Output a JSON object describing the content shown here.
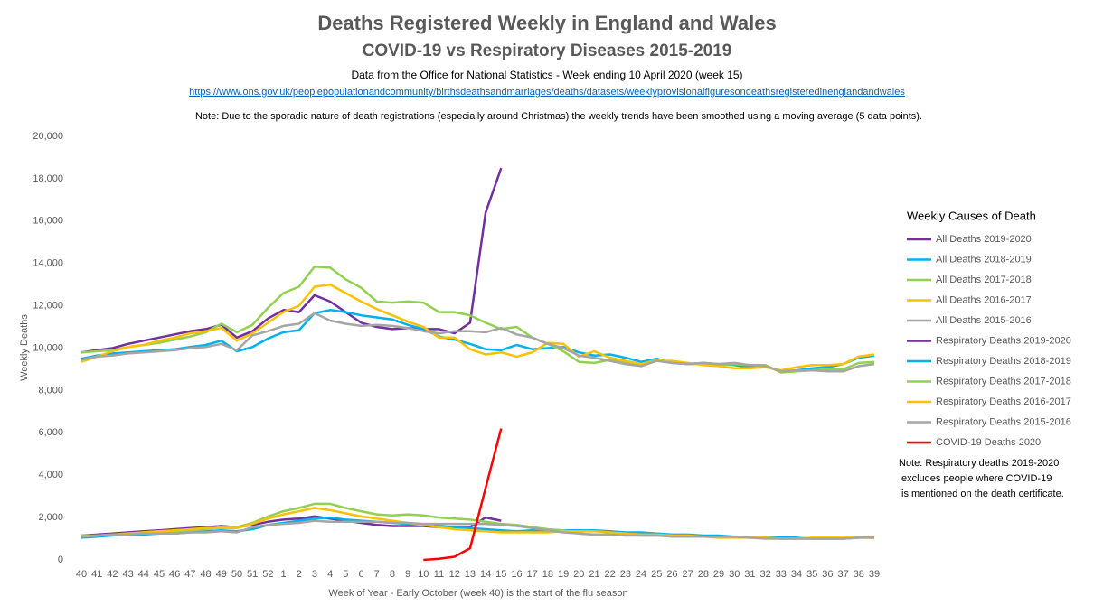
{
  "chart_data": {
    "type": "line",
    "title": "Deaths Registered Weekly in England and Wales",
    "subtitle": "COVID-19 vs Respiratory Diseases 2015-2019",
    "source": "Data from the Office for National Statistics - Week ending 10 April 2020  (week 15)",
    "url": "https://www.ons.gov.uk/peoplepopulationandcommunity/birthsdeathsandmarriages/deaths/datasets/weeklyprovisionalfiguresondeathsregisteredinenglandandwales",
    "note": "Note:  Due to the sporadic nature of death registrations (especially around Christmas) the weekly trends have been smoothed using a moving average (5 data points).",
    "legend_title": "Weekly Causes of Death",
    "legend_note": [
      "Note:  Respiratory deaths 2019-2020",
      "excludes people where  COVID-19",
      "is mentioned on the death certificate."
    ],
    "xlabel": "Week of Year - Early October (week 40) is the start of the flu season",
    "ylabel": "Weekly Deaths",
    "grid": false,
    "legend_position": "right",
    "categories": [
      "40",
      "41",
      "42",
      "43",
      "44",
      "45",
      "46",
      "47",
      "48",
      "49",
      "50",
      "51",
      "52",
      "1",
      "2",
      "3",
      "4",
      "5",
      "6",
      "7",
      "8",
      "9",
      "10",
      "11",
      "12",
      "13",
      "14",
      "15",
      "16",
      "17",
      "18",
      "19",
      "20",
      "21",
      "22",
      "23",
      "24",
      "25",
      "26",
      "27",
      "28",
      "29",
      "30",
      "31",
      "32",
      "33",
      "34",
      "35",
      "36",
      "37",
      "38",
      "39"
    ],
    "ylim": [
      0,
      20000
    ],
    "yticks": [
      0,
      {
        "value": 2000,
        "label": "2,000"
      },
      {
        "value": 4000,
        "label": "4,000"
      },
      {
        "value": 6000,
        "label": "6,000"
      },
      {
        "value": 8000,
        "label": "8,000"
      },
      {
        "value": 10000,
        "label": "10,000"
      },
      {
        "value": 12000,
        "label": "12,000"
      },
      {
        "value": 14000,
        "label": "14,000"
      },
      {
        "value": 16000,
        "label": "16,000"
      },
      {
        "value": 18000,
        "label": "18,000"
      },
      {
        "value": 20000,
        "label": "20,000"
      }
    ],
    "series": [
      {
        "name": "All Deaths 2019-2020",
        "color": "#7030a0",
        "values": [
          9800,
          9900,
          10000,
          10200,
          10350,
          10500,
          10650,
          10800,
          10900,
          11100,
          10500,
          10800,
          11400,
          11800,
          11700,
          12500,
          12200,
          11700,
          11200,
          11000,
          10900,
          10950,
          10900,
          10900,
          10700,
          11200,
          16400,
          18500,
          null,
          null,
          null,
          null,
          null,
          null,
          null,
          null,
          null,
          null,
          null,
          null,
          null,
          null,
          null,
          null,
          null,
          null,
          null,
          null,
          null,
          null,
          null,
          null
        ]
      },
      {
        "name": "All Deaths 2018-2019",
        "color": "#00b0f0",
        "values": [
          9500,
          9650,
          9750,
          9800,
          9850,
          9900,
          9950,
          10050,
          10150,
          10350,
          9850,
          10050,
          10450,
          10750,
          10850,
          11650,
          11800,
          11700,
          11550,
          11450,
          11350,
          11100,
          10900,
          10550,
          10400,
          10200,
          9950,
          9900,
          10150,
          9950,
          10000,
          10050,
          9800,
          9650,
          9700,
          9550,
          9350,
          9500,
          9300,
          9250,
          9300,
          9250,
          9200,
          9100,
          9150,
          8900,
          8950,
          9050,
          9100,
          9250,
          9550,
          9650
        ]
      },
      {
        "name": "All Deaths 2017-2018",
        "color": "#92d050",
        "values": [
          9800,
          9850,
          9900,
          10050,
          10150,
          10250,
          10400,
          10550,
          10750,
          11150,
          10750,
          11100,
          11900,
          12600,
          12900,
          13850,
          13800,
          13250,
          12850,
          12200,
          12150,
          12200,
          12150,
          11700,
          11700,
          11550,
          11200,
          10900,
          11000,
          10500,
          10200,
          9850,
          9350,
          9300,
          9450,
          9350,
          9250,
          9450,
          9300,
          9250,
          9250,
          9200,
          9250,
          9200,
          9200,
          8850,
          8900,
          8950,
          9000,
          9000,
          9300,
          9350
        ]
      },
      {
        "name": "All Deaths 2016-2017",
        "color": "#ffc000",
        "values": [
          9350,
          9600,
          9850,
          10050,
          10150,
          10350,
          10500,
          10700,
          10800,
          10950,
          10350,
          10700,
          11200,
          11700,
          12000,
          12900,
          13000,
          12600,
          12200,
          11850,
          11550,
          11250,
          11000,
          10500,
          10500,
          9950,
          9700,
          9800,
          9600,
          9800,
          10250,
          10200,
          9600,
          9850,
          9550,
          9400,
          9250,
          9400,
          9400,
          9300,
          9200,
          9150,
          9050,
          9050,
          9100,
          8950,
          9100,
          9200,
          9200,
          9250,
          9600,
          9700
        ]
      },
      {
        "name": "All Deaths 2015-2016",
        "color": "#a5a5a5",
        "values": [
          9450,
          9600,
          9650,
          9750,
          9800,
          9850,
          9900,
          10000,
          10050,
          10200,
          9900,
          10600,
          10800,
          11050,
          11150,
          11650,
          11300,
          11150,
          11050,
          11100,
          11050,
          10950,
          10800,
          10700,
          10800,
          10800,
          10750,
          10950,
          10650,
          10500,
          10200,
          10000,
          9650,
          9550,
          9400,
          9250,
          9150,
          9400,
          9300,
          9250,
          9300,
          9250,
          9300,
          9200,
          9150,
          8900,
          8950,
          8950,
          8900,
          8900,
          9150,
          9250
        ]
      },
      {
        "name": "Respiratory Deaths 2019-2020",
        "color": "#7030a0",
        "values": [
          1150,
          1200,
          1250,
          1300,
          1350,
          1400,
          1450,
          1500,
          1550,
          1600,
          1550,
          1650,
          1800,
          1900,
          1950,
          2050,
          1950,
          1850,
          1750,
          1650,
          1600,
          1600,
          1600,
          1550,
          1550,
          1550,
          2000,
          1850,
          null,
          null,
          null,
          null,
          null,
          null,
          null,
          null,
          null,
          null,
          null,
          null,
          null,
          null,
          null,
          null,
          null,
          null,
          null,
          null,
          null,
          null,
          null,
          null
        ]
      },
      {
        "name": "Respiratory Deaths 2018-2019",
        "color": "#00b0f0",
        "values": [
          1050,
          1100,
          1150,
          1200,
          1200,
          1250,
          1250,
          1300,
          1350,
          1400,
          1350,
          1450,
          1650,
          1750,
          1850,
          1950,
          2000,
          1900,
          1850,
          1800,
          1750,
          1700,
          1650,
          1600,
          1550,
          1500,
          1450,
          1400,
          1350,
          1400,
          1400,
          1400,
          1400,
          1400,
          1350,
          1300,
          1300,
          1250,
          1200,
          1200,
          1150,
          1150,
          1100,
          1100,
          1100,
          1100,
          1050,
          1000,
          1000,
          1000,
          1050,
          1100
        ]
      },
      {
        "name": "Respiratory Deaths 2017-2018",
        "color": "#92d050",
        "values": [
          1150,
          1150,
          1200,
          1250,
          1300,
          1350,
          1350,
          1400,
          1450,
          1550,
          1550,
          1750,
          2050,
          2300,
          2450,
          2650,
          2650,
          2450,
          2300,
          2150,
          2100,
          2150,
          2100,
          2000,
          1950,
          1900,
          1800,
          1700,
          1650,
          1550,
          1450,
          1400,
          1250,
          1200,
          1200,
          1200,
          1150,
          1150,
          1150,
          1100,
          1100,
          1100,
          1100,
          1050,
          1050,
          1000,
          1000,
          1000,
          1000,
          1000,
          1050,
          1050
        ]
      },
      {
        "name": "Respiratory Deaths 2016-2017",
        "color": "#ffc000",
        "values": [
          1100,
          1150,
          1200,
          1250,
          1300,
          1350,
          1400,
          1450,
          1500,
          1500,
          1500,
          1700,
          1950,
          2150,
          2300,
          2450,
          2350,
          2200,
          2050,
          1950,
          1850,
          1750,
          1650,
          1550,
          1450,
          1400,
          1350,
          1300,
          1300,
          1300,
          1300,
          1350,
          1350,
          1350,
          1300,
          1250,
          1200,
          1200,
          1150,
          1150,
          1100,
          1050,
          1050,
          1050,
          1050,
          1000,
          1000,
          1050,
          1050,
          1050,
          1050,
          1100
        ]
      },
      {
        "name": "Respiratory Deaths 2015-2016",
        "color": "#a5a5a5",
        "values": [
          1100,
          1150,
          1200,
          1200,
          1250,
          1250,
          1250,
          1300,
          1300,
          1350,
          1300,
          1550,
          1650,
          1700,
          1750,
          1850,
          1800,
          1800,
          1800,
          1800,
          1750,
          1750,
          1700,
          1700,
          1700,
          1700,
          1700,
          1650,
          1600,
          1500,
          1400,
          1300,
          1250,
          1200,
          1200,
          1150,
          1150,
          1150,
          1100,
          1100,
          1100,
          1100,
          1100,
          1050,
          1000,
          1000,
          1000,
          1000,
          1000,
          1000,
          1050,
          1050
        ]
      },
      {
        "name": "COVID-19 Deaths 2020",
        "color": "#ff0000",
        "values": [
          null,
          null,
          null,
          null,
          null,
          null,
          null,
          null,
          null,
          null,
          null,
          null,
          null,
          null,
          null,
          null,
          null,
          null,
          null,
          null,
          null,
          null,
          0,
          50,
          150,
          550,
          3400,
          6200,
          null,
          null,
          null,
          null,
          null,
          null,
          null,
          null,
          null,
          null,
          null,
          null,
          null,
          null,
          null,
          null,
          null,
          null,
          null,
          null,
          null,
          null,
          null,
          null
        ]
      }
    ]
  }
}
